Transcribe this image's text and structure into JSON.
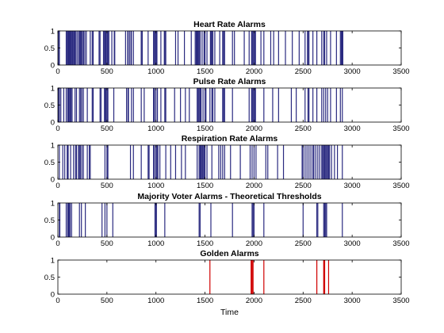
{
  "chart_data": [
    {
      "type": "bar",
      "title": "Heart Rate Alarms",
      "xlim": [
        0,
        3500
      ],
      "ylim": [
        0,
        1
      ],
      "x_ticks": [
        0,
        500,
        1000,
        1500,
        2000,
        2500,
        3000,
        3500
      ],
      "y_ticks": [
        0,
        0.5,
        1
      ],
      "x_tick_labels": [
        "0",
        "500",
        "1000",
        "1500",
        "2000",
        "2500",
        "3000",
        "3500"
      ],
      "y_tick_labels": [
        "0",
        "0.5",
        "1"
      ],
      "color": "#2a2a80",
      "alarm_times": [
        8,
        15,
        85,
        95,
        100,
        105,
        110,
        118,
        125,
        132,
        140,
        150,
        160,
        165,
        175,
        185,
        200,
        215,
        225,
        232,
        240,
        250,
        262,
        275,
        290,
        330,
        350,
        360,
        420,
        430,
        465,
        475,
        480,
        490,
        500,
        505,
        510,
        520,
        550,
        575,
        580,
        690,
        712,
        715,
        730,
        745,
        750,
        770,
        850,
        850,
        860,
        920,
        975,
        980,
        990,
        1000,
        1005,
        1010,
        1050,
        1085,
        1090,
        1100,
        1200,
        1225,
        1290,
        1360,
        1400,
        1410,
        1418,
        1425,
        1430,
        1440,
        1450,
        1470,
        1490,
        1500,
        1520,
        1555,
        1560,
        1565,
        1570,
        1580,
        1600,
        1650,
        1680,
        1690,
        1700,
        1780,
        1800,
        1900,
        1950,
        1975,
        1980,
        1990,
        2000,
        2005,
        2015,
        2070,
        2100,
        2170,
        2200,
        2250,
        2320,
        2390,
        2460,
        2520,
        2545,
        2550,
        2560,
        2600,
        2640,
        2690,
        2710,
        2720,
        2740,
        2780,
        2840,
        2880,
        2890,
        2895,
        2900,
        2905
      ]
    },
    {
      "type": "bar",
      "title": "Pulse Rate Alarms",
      "xlim": [
        0,
        3500
      ],
      "ylim": [
        0,
        1
      ],
      "x_ticks": [
        0,
        500,
        1000,
        1500,
        2000,
        2500,
        3000,
        3500
      ],
      "y_ticks": [
        0,
        0.5,
        1
      ],
      "x_tick_labels": [
        "0",
        "500",
        "1000",
        "1500",
        "2000",
        "2500",
        "3000",
        "3500"
      ],
      "y_tick_labels": [
        "0",
        "0.5",
        "1"
      ],
      "color": "#2a2a80",
      "alarm_times": [
        8,
        15,
        30,
        60,
        85,
        100,
        110,
        115,
        125,
        135,
        145,
        175,
        190,
        220,
        232,
        245,
        260,
        300,
        350,
        360,
        430,
        440,
        475,
        480,
        490,
        500,
        510,
        570,
        700,
        715,
        720,
        750,
        770,
        850,
        880,
        975,
        980,
        985,
        1000,
        1015,
        1050,
        1090,
        1100,
        1190,
        1250,
        1300,
        1340,
        1420,
        1430,
        1440,
        1450,
        1460,
        1480,
        1500,
        1510,
        1550,
        1570,
        1580,
        1600,
        1680,
        1690,
        1700,
        1780,
        1950,
        1975,
        1980,
        1990,
        2000,
        2005,
        2015,
        2100,
        2190,
        2250,
        2380,
        2430,
        2520,
        2550,
        2560,
        2600,
        2640,
        2690,
        2710,
        2730,
        2750,
        2780,
        2840,
        2880,
        2900
      ]
    },
    {
      "type": "bar",
      "title": "Respiration Rate Alarms",
      "xlim": [
        0,
        3500
      ],
      "ylim": [
        0,
        1
      ],
      "x_ticks": [
        0,
        500,
        1000,
        1500,
        2000,
        2500,
        3000,
        3500
      ],
      "y_ticks": [
        0,
        0.5,
        1
      ],
      "x_tick_labels": [
        "0",
        "500",
        "1000",
        "1500",
        "2000",
        "2500",
        "3000",
        "3500"
      ],
      "y_tick_labels": [
        "0",
        "0.5",
        "1"
      ],
      "color": "#2a2a80",
      "alarm_times": [
        15,
        50,
        70,
        95,
        100,
        105,
        130,
        160,
        180,
        190,
        210,
        220,
        230,
        245,
        260,
        300,
        320,
        330,
        480,
        500,
        510,
        740,
        770,
        850,
        920,
        930,
        975,
        985,
        1000,
        1010,
        1020,
        1040,
        1100,
        1150,
        1200,
        1260,
        1300,
        1420,
        1440,
        1450,
        1460,
        1470,
        1480,
        1490,
        1500,
        1520,
        1570,
        1640,
        1660,
        1680,
        1700,
        1760,
        1860,
        1960,
        1980,
        2000,
        2020,
        2120,
        2140,
        2240,
        2300,
        2490,
        2500,
        2520,
        2540,
        2560,
        2580,
        2600,
        2610,
        2630,
        2650,
        2670,
        2690,
        2700,
        2710,
        2720,
        2730,
        2740,
        2750,
        2760,
        2770,
        2790,
        2820,
        2850,
        2900
      ]
    },
    {
      "type": "bar",
      "title": "Majority Voter Alarms - Theoretical Thresholds",
      "xlim": [
        0,
        3500
      ],
      "ylim": [
        0,
        1
      ],
      "x_ticks": [
        0,
        500,
        1000,
        1500,
        2000,
        2500,
        3000,
        3500
      ],
      "y_ticks": [
        0,
        0.5,
        1
      ],
      "x_tick_labels": [
        "0",
        "500",
        "1000",
        "1500",
        "2000",
        "2500",
        "3000",
        "3500"
      ],
      "y_tick_labels": [
        "0",
        "0.5",
        "1"
      ],
      "color": "#2a2a80",
      "alarm_times": [
        15,
        20,
        85,
        100,
        110,
        115,
        125,
        140,
        220,
        240,
        280,
        450,
        480,
        500,
        560,
        990,
        1000,
        1005,
        1090,
        1440,
        1450,
        1560,
        1780,
        1980,
        1990,
        2000,
        2100,
        2500,
        2640,
        2650,
        2710,
        2720,
        2730,
        2740,
        2900
      ]
    },
    {
      "type": "bar",
      "title": "Golden Alarms",
      "xlabel": "Time",
      "xlim": [
        0,
        3500
      ],
      "ylim": [
        0,
        1
      ],
      "x_ticks": [
        0,
        500,
        1000,
        1500,
        2000,
        2500,
        3000,
        3500
      ],
      "y_ticks": [
        0,
        0.5,
        1
      ],
      "x_tick_labels": [
        "0",
        "500",
        "1000",
        "1500",
        "2000",
        "2500",
        "3000",
        "3500"
      ],
      "y_tick_labels": [
        "0",
        "0.5",
        "1"
      ],
      "color": "#d00000",
      "alarm_times": [
        1550,
        1970,
        1975,
        1980,
        1990,
        2100,
        2640,
        2710,
        2715,
        2720,
        2760
      ]
    }
  ]
}
